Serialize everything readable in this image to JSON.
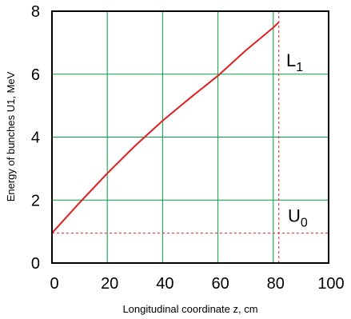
{
  "chart_data": {
    "type": "line",
    "xlabel": "Longitudinal coordinate z, cm",
    "ylabel": "Energy of bunches U1, MeV",
    "xlim": [
      0,
      100
    ],
    "ylim": [
      0,
      8
    ],
    "x_ticks": [
      "0",
      "20",
      "40",
      "60",
      "80",
      "100"
    ],
    "y_ticks": [
      "0",
      "2",
      "4",
      "6",
      "8"
    ],
    "grid": true,
    "grid_color": "#00a040",
    "line_color": "#e02020",
    "frame_color": "#000000",
    "series": [
      {
        "x": [
          0,
          10,
          20,
          30,
          40,
          50,
          60,
          70,
          80,
          82
        ],
        "y": [
          0.95,
          1.92,
          2.85,
          3.72,
          4.52,
          5.25,
          5.95,
          6.75,
          7.48,
          7.65
        ]
      }
    ],
    "reference_lines": [
      {
        "orientation": "horizontal",
        "value": 0.95,
        "label_main": "U",
        "label_sub": "0"
      },
      {
        "orientation": "vertical",
        "value": 82,
        "label_main": "L",
        "label_sub": "1"
      }
    ]
  }
}
